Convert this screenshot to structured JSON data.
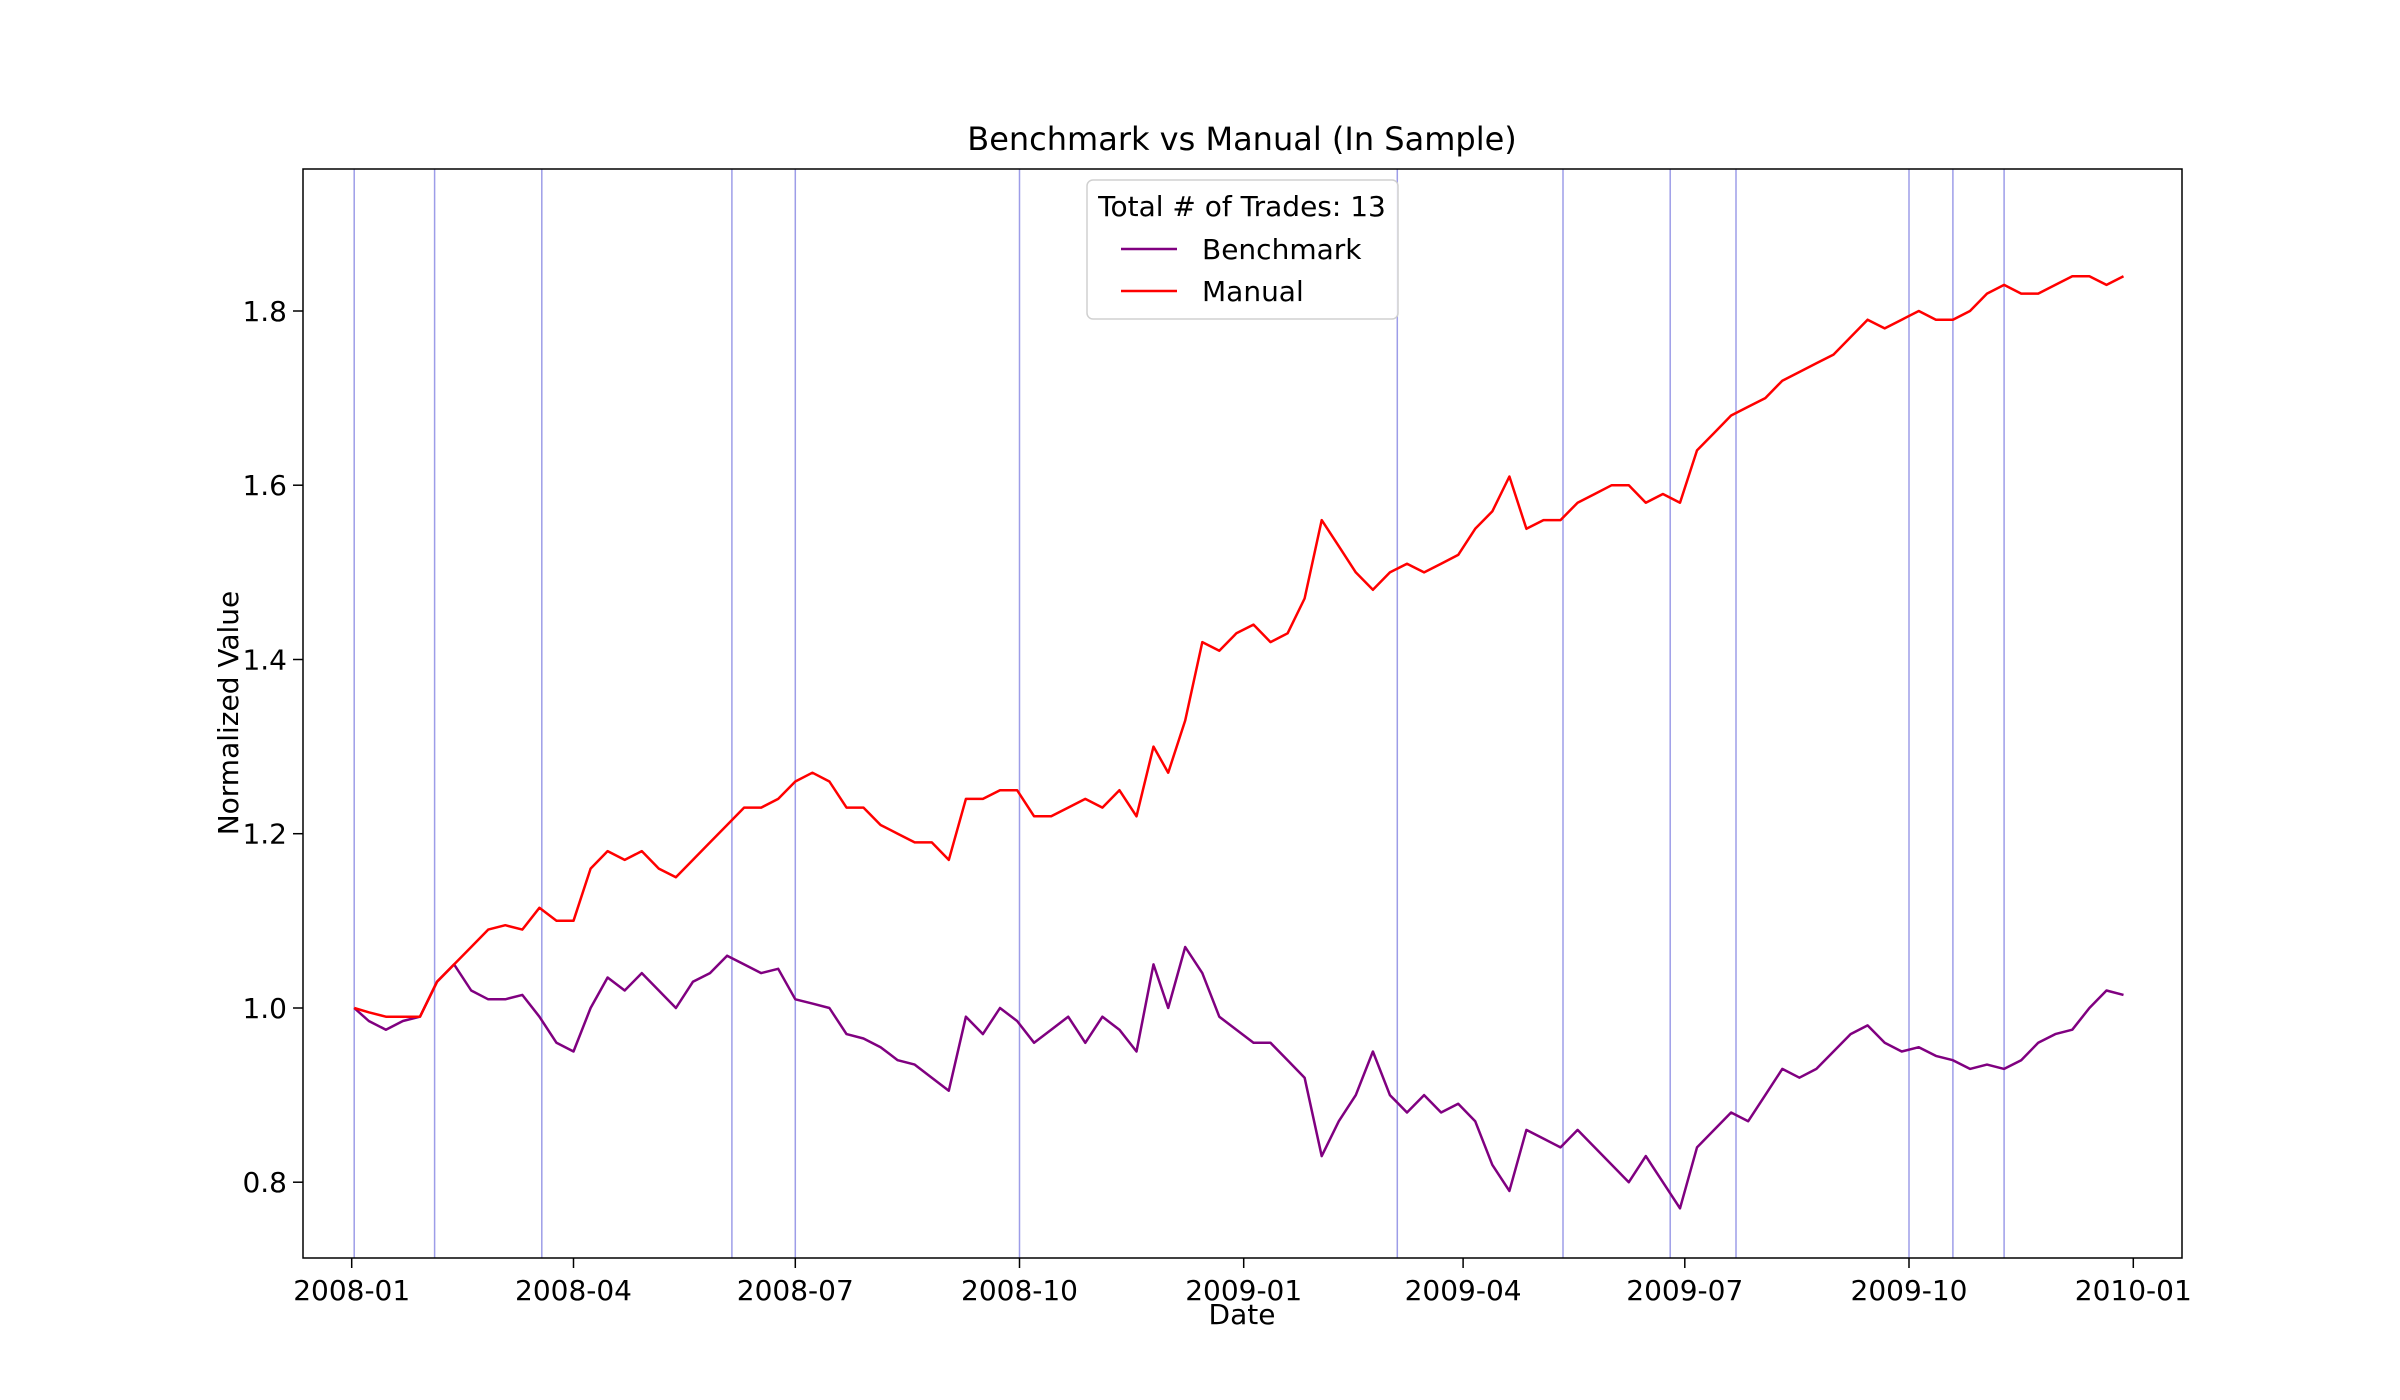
{
  "chart_data": {
    "type": "line",
    "title": "Benchmark vs Manual (In Sample)",
    "xlabel": "Date",
    "ylabel": "Normalized Value",
    "x_range": [
      "2007-12-12",
      "2010-01-21"
    ],
    "ylim": [
      0.713,
      1.963
    ],
    "x_ticks": [
      {
        "date": "2008-01-01",
        "label": "2008-01"
      },
      {
        "date": "2008-04-01",
        "label": "2008-04"
      },
      {
        "date": "2008-07-01",
        "label": "2008-07"
      },
      {
        "date": "2008-10-01",
        "label": "2008-10"
      },
      {
        "date": "2009-01-01",
        "label": "2009-01"
      },
      {
        "date": "2009-04-01",
        "label": "2009-04"
      },
      {
        "date": "2009-07-01",
        "label": "2009-07"
      },
      {
        "date": "2009-10-01",
        "label": "2009-10"
      },
      {
        "date": "2010-01-01",
        "label": "2010-01"
      }
    ],
    "y_ticks": [
      {
        "value": 0.8,
        "label": "0.8"
      },
      {
        "value": 1.0,
        "label": "1.0"
      },
      {
        "value": 1.2,
        "label": "1.2"
      },
      {
        "value": 1.4,
        "label": "1.4"
      },
      {
        "value": 1.6,
        "label": "1.6"
      },
      {
        "value": 1.8,
        "label": "1.8"
      }
    ],
    "grid": false,
    "legend": {
      "title": "Total # of Trades: 13",
      "placement": "top-center"
    },
    "trade_lines": {
      "color": "#9d9de8",
      "dates": [
        "2008-01-02",
        "2008-02-04",
        "2008-03-19",
        "2008-06-05",
        "2008-07-01",
        "2008-10-01",
        "2009-03-05",
        "2009-05-12",
        "2009-06-25",
        "2009-07-22",
        "2009-10-01",
        "2009-10-19",
        "2009-11-09"
      ]
    },
    "series": [
      {
        "name": "Benchmark",
        "color": "#800080",
        "points": [
          [
            "2008-01-02",
            1.0
          ],
          [
            "2008-01-08",
            0.985
          ],
          [
            "2008-01-15",
            0.975
          ],
          [
            "2008-01-22",
            0.985
          ],
          [
            "2008-01-29",
            0.99
          ],
          [
            "2008-02-05",
            1.03
          ],
          [
            "2008-02-12",
            1.05
          ],
          [
            "2008-02-19",
            1.02
          ],
          [
            "2008-02-26",
            1.01
          ],
          [
            "2008-03-04",
            1.01
          ],
          [
            "2008-03-11",
            1.015
          ],
          [
            "2008-03-18",
            0.99
          ],
          [
            "2008-03-25",
            0.96
          ],
          [
            "2008-04-01",
            0.95
          ],
          [
            "2008-04-08",
            1.0
          ],
          [
            "2008-04-15",
            1.035
          ],
          [
            "2008-04-22",
            1.02
          ],
          [
            "2008-04-29",
            1.04
          ],
          [
            "2008-05-06",
            1.02
          ],
          [
            "2008-05-13",
            1.0
          ],
          [
            "2008-05-20",
            1.03
          ],
          [
            "2008-05-27",
            1.04
          ],
          [
            "2008-06-03",
            1.06
          ],
          [
            "2008-06-10",
            1.05
          ],
          [
            "2008-06-17",
            1.04
          ],
          [
            "2008-06-24",
            1.045
          ],
          [
            "2008-07-01",
            1.01
          ],
          [
            "2008-07-08",
            1.005
          ],
          [
            "2008-07-15",
            1.0
          ],
          [
            "2008-07-22",
            0.97
          ],
          [
            "2008-07-29",
            0.965
          ],
          [
            "2008-08-05",
            0.955
          ],
          [
            "2008-08-12",
            0.94
          ],
          [
            "2008-08-19",
            0.935
          ],
          [
            "2008-08-26",
            0.92
          ],
          [
            "2008-09-02",
            0.905
          ],
          [
            "2008-09-09",
            0.99
          ],
          [
            "2008-09-16",
            0.97
          ],
          [
            "2008-09-23",
            1.0
          ],
          [
            "2008-09-30",
            0.985
          ],
          [
            "2008-10-07",
            0.96
          ],
          [
            "2008-10-14",
            0.975
          ],
          [
            "2008-10-21",
            0.99
          ],
          [
            "2008-10-28",
            0.96
          ],
          [
            "2008-11-04",
            0.99
          ],
          [
            "2008-11-11",
            0.975
          ],
          [
            "2008-11-18",
            0.95
          ],
          [
            "2008-11-25",
            1.05
          ],
          [
            "2008-12-01",
            1.0
          ],
          [
            "2008-12-08",
            1.07
          ],
          [
            "2008-12-15",
            1.04
          ],
          [
            "2008-12-22",
            0.99
          ],
          [
            "2008-12-29",
            0.975
          ],
          [
            "2009-01-05",
            0.96
          ],
          [
            "2009-01-12",
            0.96
          ],
          [
            "2009-01-19",
            0.94
          ],
          [
            "2009-01-26",
            0.92
          ],
          [
            "2009-02-02",
            0.83
          ],
          [
            "2009-02-09",
            0.87
          ],
          [
            "2009-02-16",
            0.9
          ],
          [
            "2009-02-23",
            0.95
          ],
          [
            "2009-03-02",
            0.9
          ],
          [
            "2009-03-09",
            0.88
          ],
          [
            "2009-03-16",
            0.9
          ],
          [
            "2009-03-23",
            0.88
          ],
          [
            "2009-03-30",
            0.89
          ],
          [
            "2009-04-06",
            0.87
          ],
          [
            "2009-04-13",
            0.82
          ],
          [
            "2009-04-20",
            0.79
          ],
          [
            "2009-04-27",
            0.86
          ],
          [
            "2009-05-04",
            0.85
          ],
          [
            "2009-05-11",
            0.84
          ],
          [
            "2009-05-18",
            0.86
          ],
          [
            "2009-05-25",
            0.84
          ],
          [
            "2009-06-01",
            0.82
          ],
          [
            "2009-06-08",
            0.8
          ],
          [
            "2009-06-15",
            0.83
          ],
          [
            "2009-06-22",
            0.8
          ],
          [
            "2009-06-29",
            0.77
          ],
          [
            "2009-07-06",
            0.84
          ],
          [
            "2009-07-13",
            0.86
          ],
          [
            "2009-07-20",
            0.88
          ],
          [
            "2009-07-27",
            0.87
          ],
          [
            "2009-08-03",
            0.9
          ],
          [
            "2009-08-10",
            0.93
          ],
          [
            "2009-08-17",
            0.92
          ],
          [
            "2009-08-24",
            0.93
          ],
          [
            "2009-08-31",
            0.95
          ],
          [
            "2009-09-07",
            0.97
          ],
          [
            "2009-09-14",
            0.98
          ],
          [
            "2009-09-21",
            0.96
          ],
          [
            "2009-09-28",
            0.95
          ],
          [
            "2009-10-05",
            0.955
          ],
          [
            "2009-10-12",
            0.945
          ],
          [
            "2009-10-19",
            0.94
          ],
          [
            "2009-10-26",
            0.93
          ],
          [
            "2009-11-02",
            0.935
          ],
          [
            "2009-11-09",
            0.93
          ],
          [
            "2009-11-16",
            0.94
          ],
          [
            "2009-11-23",
            0.96
          ],
          [
            "2009-11-30",
            0.97
          ],
          [
            "2009-12-07",
            0.975
          ],
          [
            "2009-12-14",
            1.0
          ],
          [
            "2009-12-21",
            1.02
          ],
          [
            "2009-12-28",
            1.015
          ]
        ]
      },
      {
        "name": "Manual",
        "color": "#ff0000",
        "points": [
          [
            "2008-01-02",
            1.0
          ],
          [
            "2008-01-08",
            0.995
          ],
          [
            "2008-01-15",
            0.99
          ],
          [
            "2008-01-22",
            0.99
          ],
          [
            "2008-01-29",
            0.99
          ],
          [
            "2008-02-05",
            1.03
          ],
          [
            "2008-02-12",
            1.05
          ],
          [
            "2008-02-19",
            1.07
          ],
          [
            "2008-02-26",
            1.09
          ],
          [
            "2008-03-04",
            1.095
          ],
          [
            "2008-03-11",
            1.09
          ],
          [
            "2008-03-18",
            1.115
          ],
          [
            "2008-03-25",
            1.1
          ],
          [
            "2008-04-01",
            1.1
          ],
          [
            "2008-04-08",
            1.16
          ],
          [
            "2008-04-15",
            1.18
          ],
          [
            "2008-04-22",
            1.17
          ],
          [
            "2008-04-29",
            1.18
          ],
          [
            "2008-05-06",
            1.16
          ],
          [
            "2008-05-13",
            1.15
          ],
          [
            "2008-05-20",
            1.17
          ],
          [
            "2008-05-27",
            1.19
          ],
          [
            "2008-06-03",
            1.21
          ],
          [
            "2008-06-10",
            1.23
          ],
          [
            "2008-06-17",
            1.23
          ],
          [
            "2008-06-24",
            1.24
          ],
          [
            "2008-07-01",
            1.26
          ],
          [
            "2008-07-08",
            1.27
          ],
          [
            "2008-07-15",
            1.26
          ],
          [
            "2008-07-22",
            1.23
          ],
          [
            "2008-07-29",
            1.23
          ],
          [
            "2008-08-05",
            1.21
          ],
          [
            "2008-08-12",
            1.2
          ],
          [
            "2008-08-19",
            1.19
          ],
          [
            "2008-08-26",
            1.19
          ],
          [
            "2008-09-02",
            1.17
          ],
          [
            "2008-09-09",
            1.24
          ],
          [
            "2008-09-16",
            1.24
          ],
          [
            "2008-09-23",
            1.25
          ],
          [
            "2008-09-30",
            1.25
          ],
          [
            "2008-10-07",
            1.22
          ],
          [
            "2008-10-14",
            1.22
          ],
          [
            "2008-10-21",
            1.23
          ],
          [
            "2008-10-28",
            1.24
          ],
          [
            "2008-11-04",
            1.23
          ],
          [
            "2008-11-11",
            1.25
          ],
          [
            "2008-11-18",
            1.22
          ],
          [
            "2008-11-25",
            1.3
          ],
          [
            "2008-12-01",
            1.27
          ],
          [
            "2008-12-08",
            1.33
          ],
          [
            "2008-12-15",
            1.42
          ],
          [
            "2008-12-22",
            1.41
          ],
          [
            "2008-12-29",
            1.43
          ],
          [
            "2009-01-05",
            1.44
          ],
          [
            "2009-01-12",
            1.42
          ],
          [
            "2009-01-19",
            1.43
          ],
          [
            "2009-01-26",
            1.47
          ],
          [
            "2009-02-02",
            1.56
          ],
          [
            "2009-02-09",
            1.53
          ],
          [
            "2009-02-16",
            1.5
          ],
          [
            "2009-02-23",
            1.48
          ],
          [
            "2009-03-02",
            1.5
          ],
          [
            "2009-03-09",
            1.51
          ],
          [
            "2009-03-16",
            1.5
          ],
          [
            "2009-03-23",
            1.51
          ],
          [
            "2009-03-30",
            1.52
          ],
          [
            "2009-04-06",
            1.55
          ],
          [
            "2009-04-13",
            1.57
          ],
          [
            "2009-04-20",
            1.61
          ],
          [
            "2009-04-27",
            1.55
          ],
          [
            "2009-05-04",
            1.56
          ],
          [
            "2009-05-11",
            1.56
          ],
          [
            "2009-05-18",
            1.58
          ],
          [
            "2009-05-25",
            1.59
          ],
          [
            "2009-06-01",
            1.6
          ],
          [
            "2009-06-08",
            1.6
          ],
          [
            "2009-06-15",
            1.58
          ],
          [
            "2009-06-22",
            1.59
          ],
          [
            "2009-06-29",
            1.58
          ],
          [
            "2009-07-06",
            1.64
          ],
          [
            "2009-07-13",
            1.66
          ],
          [
            "2009-07-20",
            1.68
          ],
          [
            "2009-07-27",
            1.69
          ],
          [
            "2009-08-03",
            1.7
          ],
          [
            "2009-08-10",
            1.72
          ],
          [
            "2009-08-17",
            1.73
          ],
          [
            "2009-08-24",
            1.74
          ],
          [
            "2009-08-31",
            1.75
          ],
          [
            "2009-09-07",
            1.77
          ],
          [
            "2009-09-14",
            1.79
          ],
          [
            "2009-09-21",
            1.78
          ],
          [
            "2009-09-28",
            1.79
          ],
          [
            "2009-10-05",
            1.8
          ],
          [
            "2009-10-12",
            1.79
          ],
          [
            "2009-10-19",
            1.79
          ],
          [
            "2009-10-26",
            1.8
          ],
          [
            "2009-11-02",
            1.82
          ],
          [
            "2009-11-09",
            1.83
          ],
          [
            "2009-11-16",
            1.82
          ],
          [
            "2009-11-23",
            1.82
          ],
          [
            "2009-11-30",
            1.83
          ],
          [
            "2009-12-07",
            1.84
          ],
          [
            "2009-12-14",
            1.84
          ],
          [
            "2009-12-21",
            1.83
          ],
          [
            "2009-12-28",
            1.84
          ]
        ]
      }
    ]
  }
}
